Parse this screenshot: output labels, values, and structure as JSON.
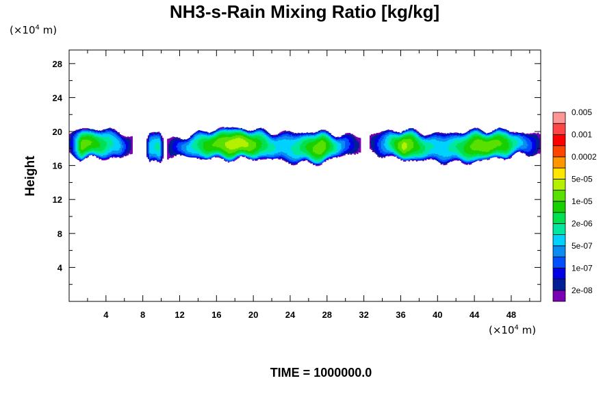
{
  "chart_data": {
    "type": "heatmap",
    "title": "NH3-s-Rain Mixing Ratio [kg/kg]",
    "ylabel": "Height",
    "y_unit": {
      "prefix": "(×10",
      "exponent": "4",
      "suffix": " m)"
    },
    "x_unit": {
      "prefix": "(×10",
      "exponent": "4",
      "suffix": " m)"
    },
    "xlim": [
      0,
      51.2
    ],
    "ylim": [
      0,
      29.6
    ],
    "x_ticks": [
      4,
      8,
      12,
      16,
      20,
      24,
      28,
      32,
      36,
      40,
      44,
      48
    ],
    "y_ticks": [
      4,
      8,
      12,
      16,
      20,
      24,
      28
    ],
    "footer": "TIME = 1000000.0",
    "colorbar": {
      "colors": [
        "#7a00b4",
        "#001e96",
        "#0000e6",
        "#0050ff",
        "#0a8cf0",
        "#00d2ff",
        "#00e8a0",
        "#00e050",
        "#18d000",
        "#5ae000",
        "#b4f000",
        "#ffe600",
        "#ff9600",
        "#ff4600",
        "#ff0000",
        "#ff4646",
        "#ff9696"
      ],
      "labels": [
        "2e-08",
        "1e-07",
        "5e-07",
        "2e-06",
        "1e-05",
        "5e-05",
        "0.0002",
        "0.001",
        "0.005"
      ]
    },
    "cloud_layer": {
      "y_bottom": 16.6,
      "y_top": 20.0,
      "segments": [
        {
          "x0": 0.0,
          "x1": 6.8,
          "peak_level": 10
        },
        {
          "x0": 8.4,
          "x1": 10.2,
          "peak_level": 7
        },
        {
          "x0": 10.7,
          "x1": 31.6,
          "peak_level": 11
        },
        {
          "x0": 32.6,
          "x1": 51.2,
          "peak_level": 11
        }
      ]
    }
  }
}
